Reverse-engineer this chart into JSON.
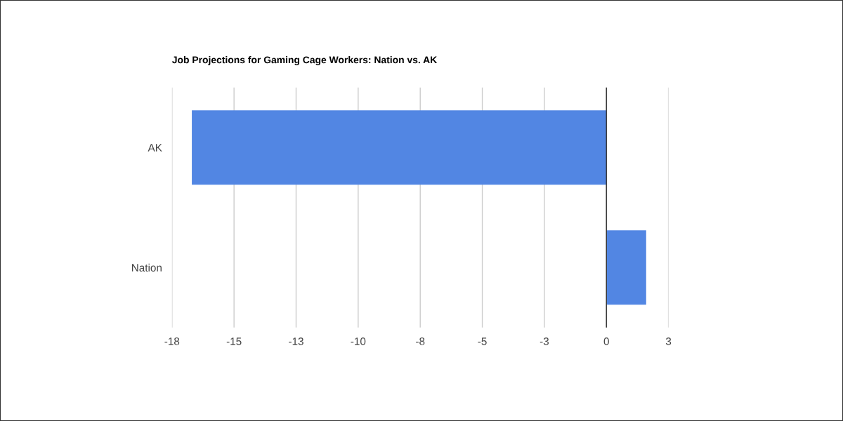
{
  "chart_data": {
    "type": "bar",
    "orientation": "horizontal",
    "title": "Job Projections for Gaming Cage Workers: Nation vs. AK",
    "categories": [
      "AK",
      "Nation"
    ],
    "values": [
      -16.7,
      1.6
    ],
    "color": "#5286e3",
    "xlim": [
      -17.5,
      2.5
    ],
    "xticks": [
      {
        "value": -17.5,
        "label": "-18"
      },
      -15,
      {
        "value": -12.5,
        "label": "-13"
      },
      -10,
      {
        "value": -7.5,
        "label": "-8"
      },
      -5,
      {
        "value": -2.5,
        "label": "-3"
      },
      0,
      {
        "value": 2.5,
        "label": "3"
      }
    ],
    "grid": "x",
    "legend": false
  }
}
